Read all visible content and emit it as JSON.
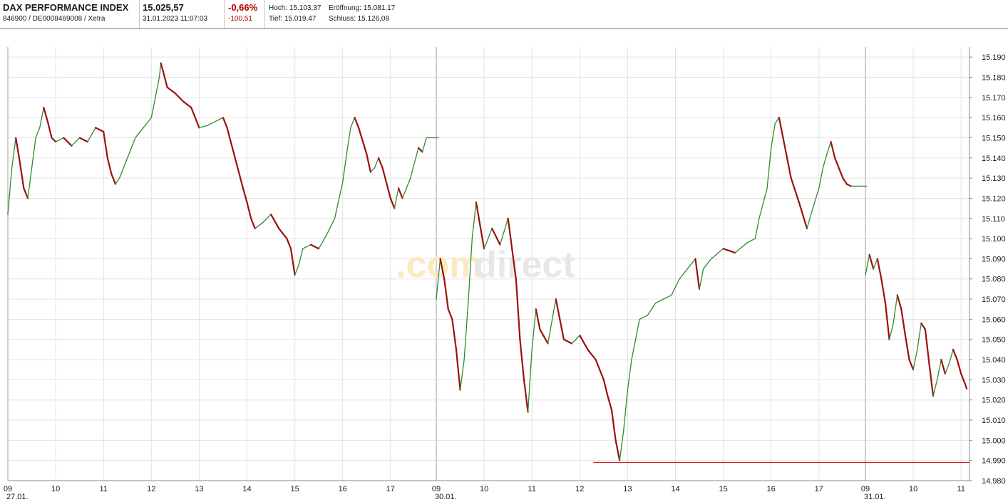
{
  "header": {
    "title": "DAX PERFORMANCE INDEX",
    "subtitle": "846900 / DE0008469008 / Xetra",
    "price": "15.025,57",
    "datetime": "31.01.2023 11:07:03",
    "change_pct": "-0,66%",
    "change_abs": "-100,51",
    "high": "Hoch: 15.103,37",
    "low": "Tief: 15.019,47",
    "open": "Eröffnung: 15.081,17",
    "close": "Schluss: 15.126,08"
  },
  "watermark": {
    "part1": ".com",
    "part2": "direct"
  },
  "colors": {
    "up": "#2e8b2e",
    "down": "#9b1010",
    "grid": "#e3e3e3",
    "reference_line": "#c81e1e"
  },
  "chart_data": {
    "type": "line",
    "ylim": [
      14980,
      15195
    ],
    "y_ticks": [
      "15.190",
      "15.180",
      "15.170",
      "15.160",
      "15.150",
      "15.140",
      "15.130",
      "15.120",
      "15.110",
      "15.100",
      "15.090",
      "15.080",
      "15.070",
      "15.060",
      "15.050",
      "15.040",
      "15.030",
      "15.020",
      "15.010",
      "15.000",
      "14.990",
      "14.980"
    ],
    "days": [
      {
        "label": "27.01.",
        "hours": [
          "09",
          "10",
          "11",
          "12",
          "13",
          "14",
          "15",
          "16",
          "17"
        ]
      },
      {
        "label": "30.01.",
        "hours": [
          "09",
          "10",
          "11",
          "12",
          "13",
          "14",
          "15",
          "16",
          "17"
        ]
      },
      {
        "label": "31.01.",
        "hours": [
          "09",
          "10",
          "11"
        ]
      }
    ],
    "reference_line": {
      "value": 14989,
      "from": "12:17 30.01.",
      "to": "end"
    },
    "series": [
      {
        "day": "27.01.",
        "points": [
          [
            "09:00",
            15112
          ],
          [
            "09:05",
            15135
          ],
          [
            "09:10",
            15150
          ],
          [
            "09:15",
            15138
          ],
          [
            "09:20",
            15125
          ],
          [
            "09:25",
            15120
          ],
          [
            "09:30",
            15135
          ],
          [
            "09:35",
            15150
          ],
          [
            "09:40",
            15155
          ],
          [
            "09:45",
            15165
          ],
          [
            "09:50",
            15158
          ],
          [
            "09:55",
            15150
          ],
          [
            "10:00",
            15148
          ],
          [
            "10:10",
            15150
          ],
          [
            "10:20",
            15146
          ],
          [
            "10:30",
            15150
          ],
          [
            "10:40",
            15148
          ],
          [
            "10:50",
            15155
          ],
          [
            "11:00",
            15153
          ],
          [
            "11:05",
            15140
          ],
          [
            "11:10",
            15132
          ],
          [
            "11:15",
            15127
          ],
          [
            "11:20",
            15130
          ],
          [
            "11:30",
            15140
          ],
          [
            "11:40",
            15150
          ],
          [
            "11:50",
            15155
          ],
          [
            "12:00",
            15160
          ],
          [
            "12:05",
            15170
          ],
          [
            "12:10",
            15180
          ],
          [
            "12:12",
            15187
          ],
          [
            "12:20",
            15175
          ],
          [
            "12:30",
            15172
          ],
          [
            "12:40",
            15168
          ],
          [
            "12:50",
            15165
          ],
          [
            "13:00",
            15155
          ],
          [
            "13:10",
            15156
          ],
          [
            "13:20",
            15158
          ],
          [
            "13:30",
            15160
          ],
          [
            "13:35",
            15155
          ],
          [
            "13:45",
            15140
          ],
          [
            "13:55",
            15125
          ],
          [
            "14:00",
            15118
          ],
          [
            "14:05",
            15110
          ],
          [
            "14:10",
            15105
          ],
          [
            "14:20",
            15108
          ],
          [
            "14:30",
            15112
          ],
          [
            "14:40",
            15105
          ],
          [
            "14:50",
            15100
          ],
          [
            "14:55",
            15095
          ],
          [
            "15:00",
            15082
          ],
          [
            "15:05",
            15087
          ],
          [
            "15:10",
            15095
          ],
          [
            "15:20",
            15097
          ],
          [
            "15:30",
            15095
          ],
          [
            "15:40",
            15102
          ],
          [
            "15:50",
            15110
          ],
          [
            "16:00",
            15128
          ],
          [
            "16:05",
            15142
          ],
          [
            "16:10",
            15155
          ],
          [
            "16:15",
            15160
          ],
          [
            "16:20",
            15155
          ],
          [
            "16:30",
            15142
          ],
          [
            "16:35",
            15133
          ],
          [
            "16:40",
            15135
          ],
          [
            "16:45",
            15140
          ],
          [
            "16:50",
            15135
          ],
          [
            "17:00",
            15120
          ],
          [
            "17:05",
            15115
          ],
          [
            "17:10",
            15125
          ],
          [
            "17:15",
            15120
          ],
          [
            "17:25",
            15130
          ],
          [
            "17:35",
            15145
          ],
          [
            "17:40",
            15143
          ],
          [
            "17:45",
            15150
          ],
          [
            "18:00",
            15150
          ]
        ]
      },
      {
        "day": "30.01.",
        "points": [
          [
            "09:00",
            15070
          ],
          [
            "09:05",
            15090
          ],
          [
            "09:10",
            15080
          ],
          [
            "09:15",
            15065
          ],
          [
            "09:20",
            15060
          ],
          [
            "09:25",
            15045
          ],
          [
            "09:30",
            15025
          ],
          [
            "09:35",
            15040
          ],
          [
            "09:40",
            15068
          ],
          [
            "09:45",
            15100
          ],
          [
            "09:50",
            15118
          ],
          [
            "10:00",
            15095
          ],
          [
            "10:10",
            15105
          ],
          [
            "10:20",
            15097
          ],
          [
            "10:30",
            15110
          ],
          [
            "10:35",
            15095
          ],
          [
            "10:40",
            15080
          ],
          [
            "10:45",
            15050
          ],
          [
            "10:50",
            15030
          ],
          [
            "10:55",
            15014
          ],
          [
            "11:00",
            15045
          ],
          [
            "11:05",
            15065
          ],
          [
            "11:10",
            15055
          ],
          [
            "11:20",
            15048
          ],
          [
            "11:30",
            15070
          ],
          [
            "11:35",
            15060
          ],
          [
            "11:40",
            15050
          ],
          [
            "11:50",
            15048
          ],
          [
            "12:00",
            15052
          ],
          [
            "12:10",
            15045
          ],
          [
            "12:20",
            15040
          ],
          [
            "12:30",
            15030
          ],
          [
            "12:35",
            15022
          ],
          [
            "12:40",
            15015
          ],
          [
            "12:45",
            15000
          ],
          [
            "12:50",
            14990
          ],
          [
            "12:55",
            15005
          ],
          [
            "13:00",
            15025
          ],
          [
            "13:05",
            15040
          ],
          [
            "13:10",
            15050
          ],
          [
            "13:15",
            15060
          ],
          [
            "13:25",
            15062
          ],
          [
            "13:35",
            15068
          ],
          [
            "13:45",
            15070
          ],
          [
            "13:55",
            15072
          ],
          [
            "14:05",
            15080
          ],
          [
            "14:15",
            15085
          ],
          [
            "14:25",
            15090
          ],
          [
            "14:30",
            15075
          ],
          [
            "14:35",
            15085
          ],
          [
            "14:45",
            15090
          ],
          [
            "15:00",
            15095
          ],
          [
            "15:15",
            15093
          ],
          [
            "15:30",
            15098
          ],
          [
            "15:40",
            15100
          ],
          [
            "15:45",
            15110
          ],
          [
            "15:55",
            15125
          ],
          [
            "16:00",
            15145
          ],
          [
            "16:05",
            15157
          ],
          [
            "16:10",
            15160
          ],
          [
            "16:15",
            15150
          ],
          [
            "16:25",
            15130
          ],
          [
            "16:35",
            15118
          ],
          [
            "16:45",
            15105
          ],
          [
            "16:50",
            15112
          ],
          [
            "17:00",
            15125
          ],
          [
            "17:05",
            15135
          ],
          [
            "17:10",
            15142
          ],
          [
            "17:15",
            15148
          ],
          [
            "17:20",
            15140
          ],
          [
            "17:30",
            15130
          ],
          [
            "17:35",
            15127
          ],
          [
            "17:40",
            15126
          ],
          [
            "18:00",
            15126
          ]
        ]
      },
      {
        "day": "31.01.",
        "points": [
          [
            "09:00",
            15082
          ],
          [
            "09:05",
            15092
          ],
          [
            "09:10",
            15085
          ],
          [
            "09:15",
            15090
          ],
          [
            "09:20",
            15080
          ],
          [
            "09:25",
            15068
          ],
          [
            "09:30",
            15050
          ],
          [
            "09:35",
            15058
          ],
          [
            "09:40",
            15072
          ],
          [
            "09:45",
            15065
          ],
          [
            "09:50",
            15052
          ],
          [
            "09:55",
            15040
          ],
          [
            "10:00",
            15035
          ],
          [
            "10:05",
            15045
          ],
          [
            "10:10",
            15058
          ],
          [
            "10:15",
            15055
          ],
          [
            "10:20",
            15038
          ],
          [
            "10:25",
            15022
          ],
          [
            "10:30",
            15030
          ],
          [
            "10:35",
            15040
          ],
          [
            "10:40",
            15033
          ],
          [
            "10:45",
            15038
          ],
          [
            "10:50",
            15045
          ],
          [
            "10:55",
            15040
          ],
          [
            "11:00",
            15033
          ],
          [
            "11:05",
            15028
          ],
          [
            "11:07",
            15025.57
          ]
        ]
      }
    ]
  }
}
